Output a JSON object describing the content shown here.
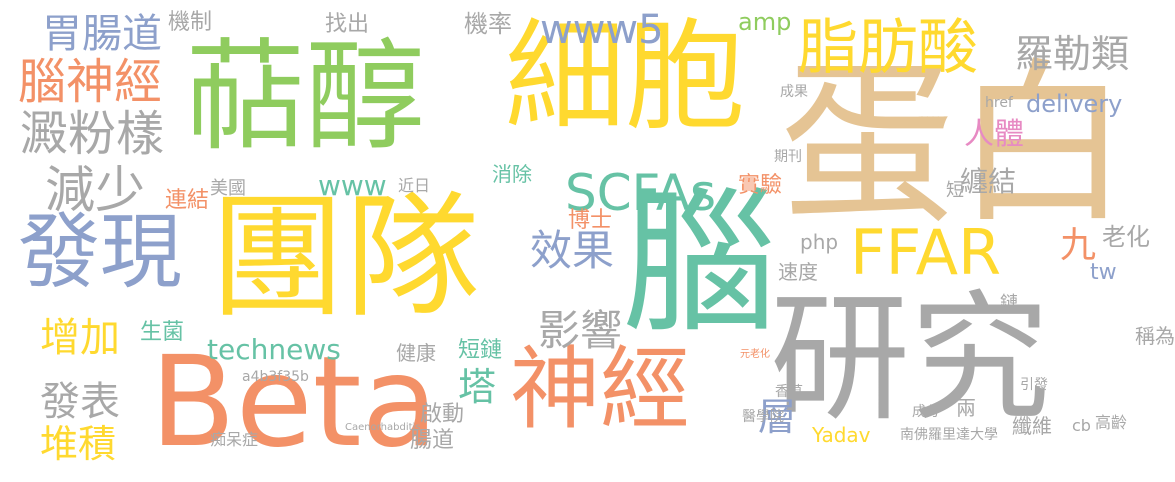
{
  "palette": {
    "gray": "#a8a8a8",
    "orange": "#f39167",
    "green": "#8fcc5e",
    "yellow": "#ffd92f",
    "tan": "#e5c494",
    "teal": "#66c2a5",
    "blue": "#8da0cb",
    "pink": "#e78ac3"
  },
  "words": [
    "蛋白",
    "團隊",
    "腦",
    "細胞",
    "萜醇",
    "研究",
    "Beta",
    "神經",
    "發現",
    "FFAR",
    "脂肪酸",
    "SCFAs",
    "腦神經",
    "減少",
    "澱粉樣",
    "胃腸道",
    "羅勒類",
    "www5",
    "效果",
    "影響",
    "增加",
    "發表",
    "堆積",
    "塔",
    "technews",
    "www",
    "delivery",
    "層",
    "人體",
    "纏結",
    "九",
    "老化",
    "機制",
    "找出",
    "機率",
    "amp",
    "連結",
    "生菌",
    "博士",
    "實驗",
    "消除",
    "短鏈",
    "健康",
    "啟動",
    "腸道",
    "Yadav",
    "纖維",
    "稱為",
    "兩",
    "鏈",
    "tw",
    "php",
    "速度",
    "期刊",
    "短",
    "近日",
    "美國",
    "a4b3f35b",
    "痴呆症",
    "南佛羅里達大學",
    "成分",
    "cb",
    "高齡",
    "醫學院",
    "香草",
    "成果",
    "引發",
    "href",
    "元老化",
    "Caenorhabditis"
  ]
}
